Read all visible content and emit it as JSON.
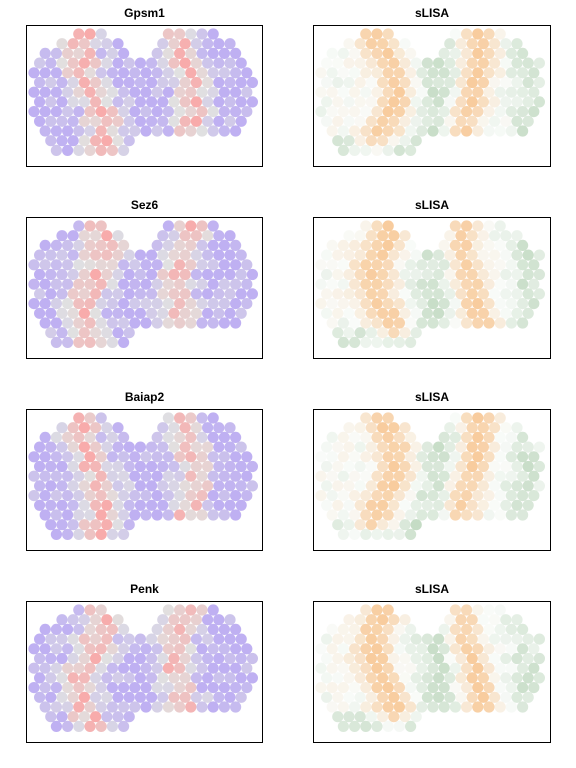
{
  "chart_data": [
    {
      "type": "scatter",
      "title": "Gpsm1",
      "grid": false,
      "legend": "none",
      "palette": {
        "low": "#8a6fe8",
        "mid": "#c8c8c8",
        "high": "#f26666"
      },
      "pattern": "expression_a"
    },
    {
      "type": "scatter",
      "title": "sLISA",
      "grid": false,
      "legend": "none",
      "palette": {
        "neg": "#5a9a5a",
        "zero": "#f4f8f4",
        "pos": "#f2a24e"
      },
      "pattern": "slisa_a"
    },
    {
      "type": "scatter",
      "title": "Sez6",
      "grid": false,
      "legend": "none",
      "palette": {
        "low": "#8a6fe8",
        "mid": "#c8c8c8",
        "high": "#f26666"
      },
      "pattern": "expression_b"
    },
    {
      "type": "scatter",
      "title": "sLISA",
      "grid": false,
      "legend": "none",
      "palette": {
        "neg": "#5a9a5a",
        "zero": "#f4f8f4",
        "pos": "#f2a24e"
      },
      "pattern": "slisa_b"
    },
    {
      "type": "scatter",
      "title": "Baiap2",
      "grid": false,
      "legend": "none",
      "palette": {
        "low": "#8a6fe8",
        "mid": "#c8c8c8",
        "high": "#f26666"
      },
      "pattern": "expression_c"
    },
    {
      "type": "scatter",
      "title": "sLISA",
      "grid": false,
      "legend": "none",
      "palette": {
        "neg": "#5a9a5a",
        "zero": "#f4f8f4",
        "pos": "#f2a24e"
      },
      "pattern": "slisa_c"
    },
    {
      "type": "scatter",
      "title": "Penk",
      "grid": false,
      "legend": "none",
      "palette": {
        "low": "#8a6fe8",
        "mid": "#c8c8c8",
        "high": "#f26666"
      },
      "pattern": "expression_d"
    },
    {
      "type": "scatter",
      "title": "sLISA",
      "grid": false,
      "legend": "none",
      "palette": {
        "neg": "#5a9a5a",
        "zero": "#f4f8f4",
        "pos": "#f2a24e"
      },
      "pattern": "slisa_d"
    }
  ]
}
